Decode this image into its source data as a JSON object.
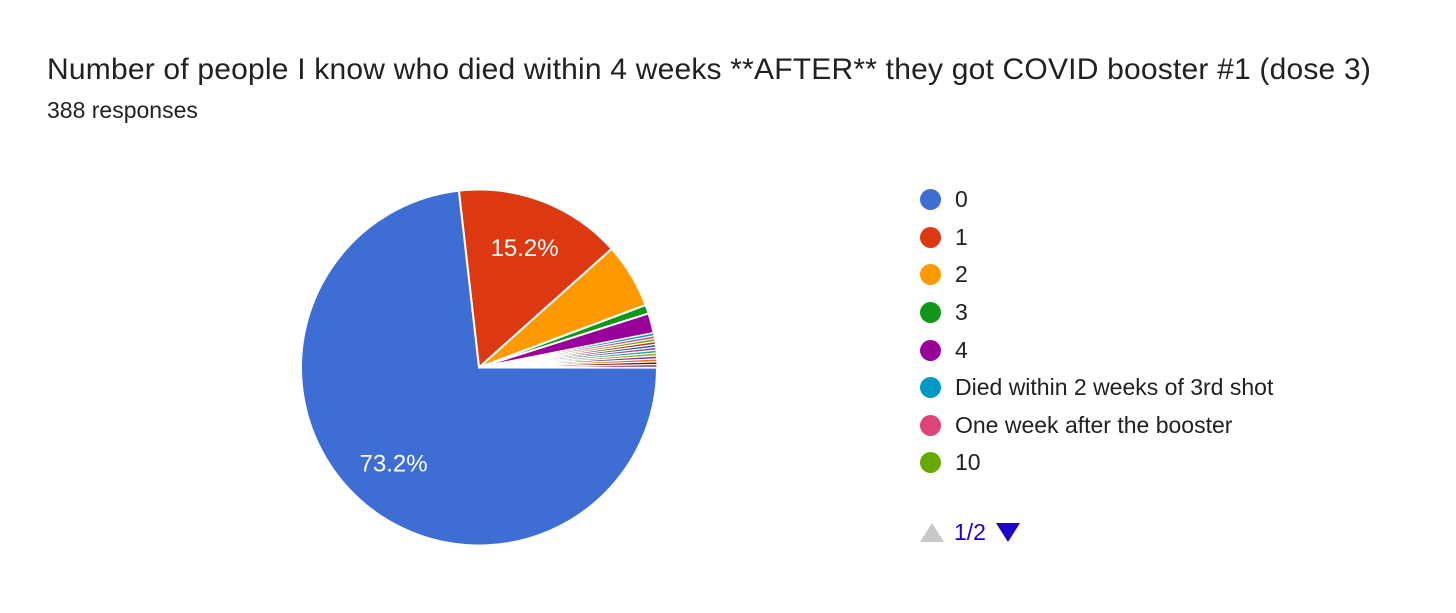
{
  "header": {
    "title": "Number of people I know who died within 4 weeks **AFTER** they got COVID booster #1 (dose 3)",
    "responses": "388 responses"
  },
  "chart_data": {
    "type": "pie",
    "title": "Number of people I know who died within 4 weeks **AFTER** they got COVID booster #1 (dose 3)",
    "subtitle": "388 responses",
    "total_responses": 388,
    "start_angle_deg": -6.5,
    "direction": "clockwise",
    "slice_gap_color": "#ffffff",
    "labeled_values": [
      "73.2%",
      "15.2%"
    ],
    "slices": [
      {
        "label": "1",
        "pct": 15.2,
        "color": "#dc3912",
        "data_label": "15.2%"
      },
      {
        "label": "2",
        "pct": 5.9,
        "color": "#ff9900",
        "data_label": ""
      },
      {
        "label": "3",
        "pct": 0.8,
        "color": "#109618",
        "data_label": ""
      },
      {
        "label": "4",
        "pct": 1.8,
        "color": "#990099",
        "data_label": ""
      },
      {
        "label": "Died within 2 weeks of 3rd shot",
        "pct": 0.26,
        "color": "#0099c6",
        "data_label": ""
      },
      {
        "label": "One week after the booster",
        "pct": 0.26,
        "color": "#dd4477",
        "data_label": ""
      },
      {
        "label": "10",
        "pct": 0.26,
        "color": "#66aa00",
        "data_label": ""
      },
      {
        "label": "",
        "pct": 0.26,
        "color": "#b82e2e",
        "data_label": ""
      },
      {
        "label": "",
        "pct": 0.26,
        "color": "#316395",
        "data_label": ""
      },
      {
        "label": "",
        "pct": 0.26,
        "color": "#994499",
        "data_label": ""
      },
      {
        "label": "",
        "pct": 0.26,
        "color": "#22aa99",
        "data_label": ""
      },
      {
        "label": "",
        "pct": 0.26,
        "color": "#aaaa11",
        "data_label": ""
      },
      {
        "label": "",
        "pct": 0.26,
        "color": "#6633cc",
        "data_label": ""
      },
      {
        "label": "",
        "pct": 0.26,
        "color": "#e67300",
        "data_label": ""
      },
      {
        "label": "",
        "pct": 0.26,
        "color": "#8b0707",
        "data_label": ""
      },
      {
        "label": "",
        "pct": 0.26,
        "color": "#651067",
        "data_label": ""
      },
      {
        "label": "0",
        "pct": 73.2,
        "color": "#3e6dd3",
        "data_label": "73.2%"
      }
    ]
  },
  "legend": {
    "items": [
      {
        "label": "0",
        "color": "#3e6dd3"
      },
      {
        "label": "1",
        "color": "#dc3912"
      },
      {
        "label": "2",
        "color": "#ff9900"
      },
      {
        "label": "3",
        "color": "#109618"
      },
      {
        "label": "4",
        "color": "#990099"
      },
      {
        "label": "Died within 2 weeks of 3rd shot",
        "color": "#0099c6"
      },
      {
        "label": "One week after the booster",
        "color": "#dd4477"
      },
      {
        "label": "10",
        "color": "#66aa00"
      }
    ],
    "pagination": {
      "page_label": "1/2",
      "up_enabled": false,
      "up_color": "#c9c9c9",
      "down_enabled": true,
      "down_color": "#2200cc",
      "text_color": "#2200cc"
    }
  }
}
